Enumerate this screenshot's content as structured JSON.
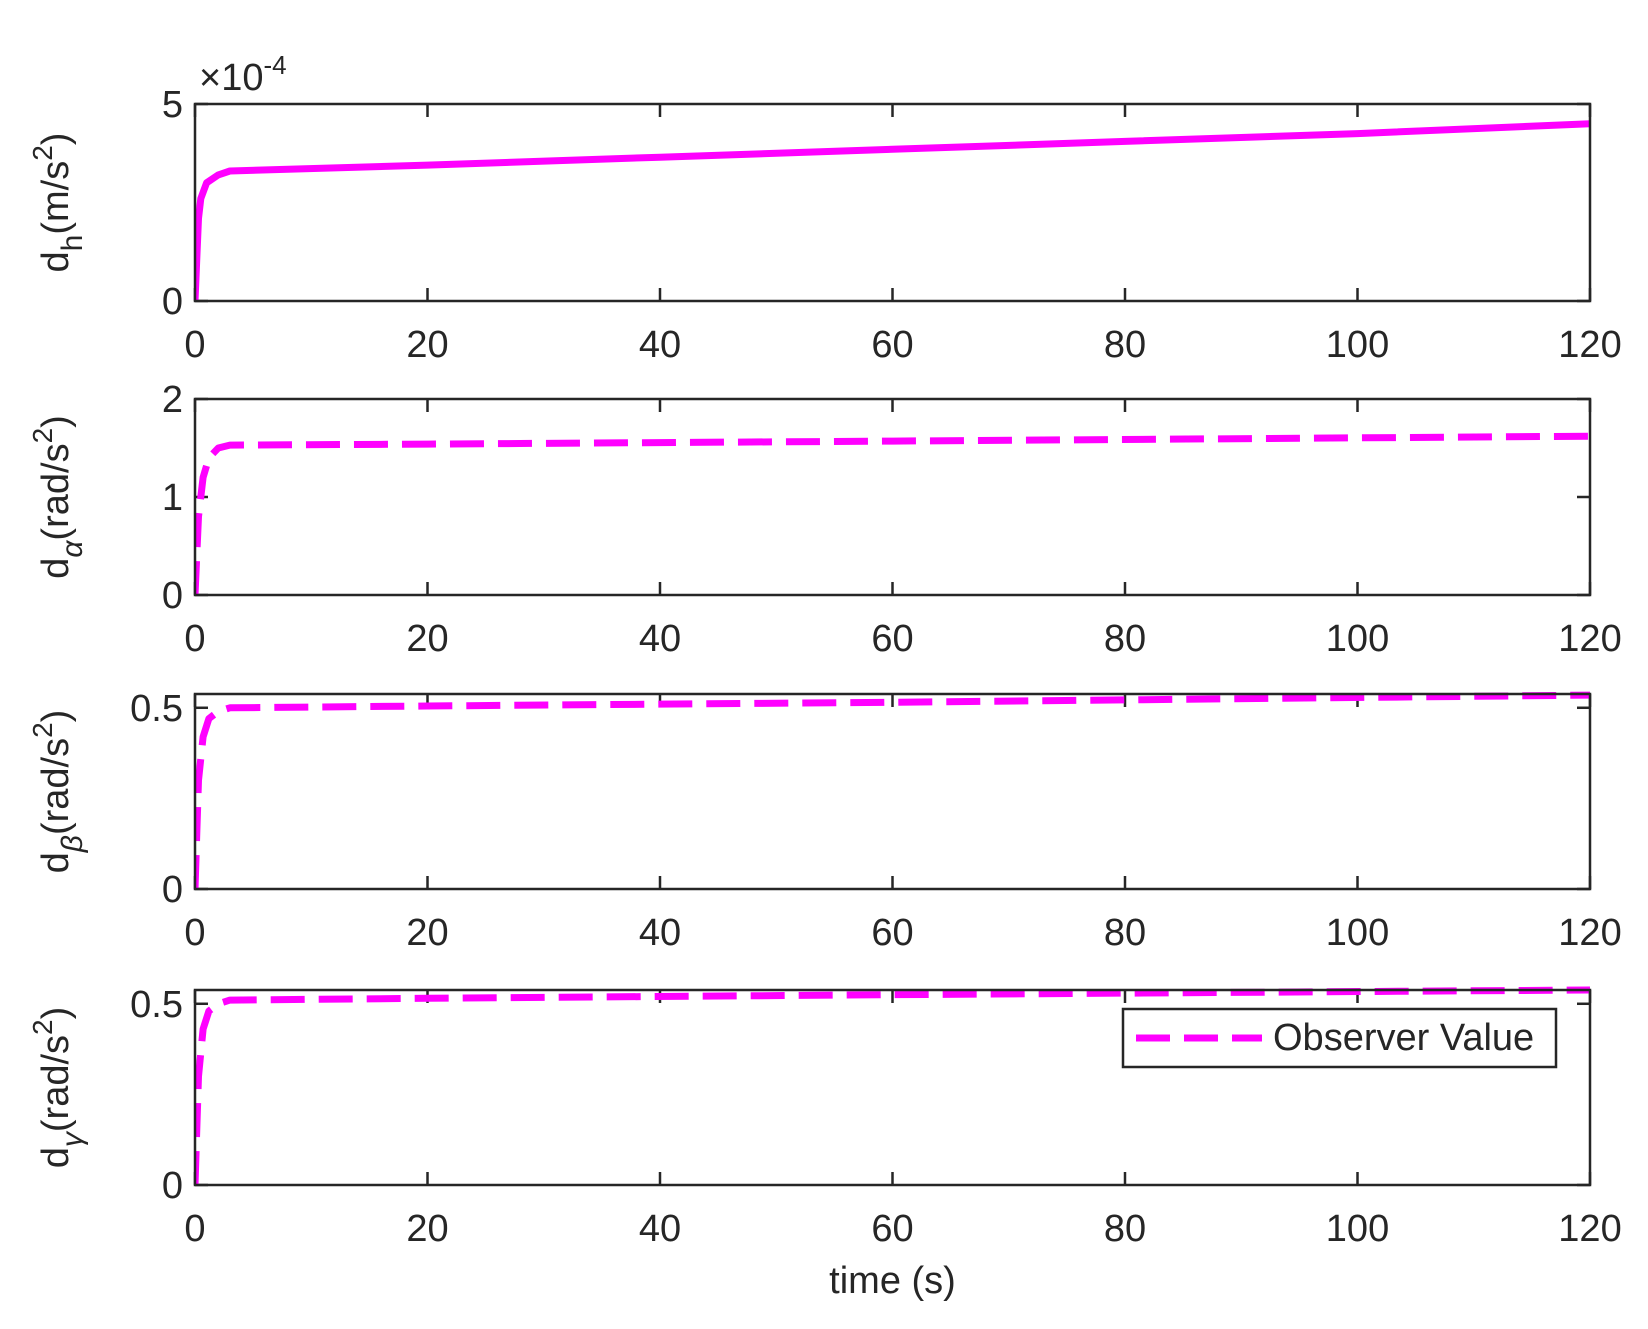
{
  "chart_data": [
    {
      "type": "line",
      "multiplier": {
        "base": "×10",
        "exponent": "-4"
      },
      "ylabel": {
        "main": "d",
        "sub": "h",
        "unit": "(m/s",
        "sup": "2",
        "close": ")"
      },
      "x": [
        0,
        0.3,
        0.5,
        1,
        2,
        3,
        20,
        40,
        60,
        80,
        100,
        120
      ],
      "series": [
        {
          "color": "#ff00ff",
          "linestyle": "solid",
          "values": [
            0,
            2.1,
            2.6,
            3.0,
            3.2,
            3.3,
            3.45,
            3.65,
            3.85,
            4.05,
            4.25,
            4.5
          ]
        }
      ],
      "xlim": [
        0,
        120
      ],
      "xticks": [
        0,
        20,
        40,
        60,
        80,
        100,
        120
      ],
      "ylim": [
        0,
        5
      ],
      "yticks": [
        0,
        5
      ]
    },
    {
      "type": "line",
      "ylabel": {
        "main": "d",
        "sub": "α",
        "unit": "(rad/s",
        "sup": "2",
        "close": ")"
      },
      "x": [
        0,
        0.3,
        0.7,
        1.2,
        2,
        3,
        20,
        60,
        120
      ],
      "series": [
        {
          "color": "#ff00ff",
          "linestyle": "dashed",
          "values": [
            0,
            0.8,
            1.2,
            1.4,
            1.5,
            1.53,
            1.54,
            1.57,
            1.62
          ]
        }
      ],
      "xlim": [
        0,
        120
      ],
      "xticks": [
        0,
        20,
        40,
        60,
        80,
        100,
        120
      ],
      "ylim": [
        0,
        2
      ],
      "yticks": [
        0,
        1,
        2
      ]
    },
    {
      "type": "line",
      "ylabel": {
        "main": "d",
        "sub": "β",
        "unit": "(rad/s",
        "sup": "2",
        "close": ")"
      },
      "x": [
        0,
        0.3,
        0.7,
        1.2,
        2,
        3,
        20,
        60,
        120
      ],
      "series": [
        {
          "color": "#ff00ff",
          "linestyle": "dashed",
          "values": [
            0,
            0.3,
            0.42,
            0.47,
            0.49,
            0.5,
            0.505,
            0.515,
            0.535
          ]
        }
      ],
      "xlim": [
        0,
        120
      ],
      "xticks": [
        0,
        20,
        40,
        60,
        80,
        100,
        120
      ],
      "ylim": [
        0,
        0.538
      ],
      "yticks": [
        0,
        0.5
      ]
    },
    {
      "type": "line",
      "ylabel": {
        "main": "d",
        "sub": "γ",
        "unit": "(rad/s",
        "sup": "2",
        "close": ")"
      },
      "xlabel": "time (s)",
      "x": [
        0,
        0.3,
        0.7,
        1.2,
        2,
        3,
        20,
        60,
        120
      ],
      "series": [
        {
          "name": "Observer Value",
          "color": "#ff00ff",
          "linestyle": "dashed",
          "values": [
            0,
            0.3,
            0.43,
            0.48,
            0.5,
            0.51,
            0.515,
            0.525,
            0.538
          ]
        }
      ],
      "legend": "upper right",
      "xlim": [
        0,
        120
      ],
      "xticks": [
        0,
        20,
        40,
        60,
        80,
        100,
        120
      ],
      "ylim": [
        0,
        0.538
      ],
      "yticks": [
        0,
        0.5
      ]
    }
  ]
}
